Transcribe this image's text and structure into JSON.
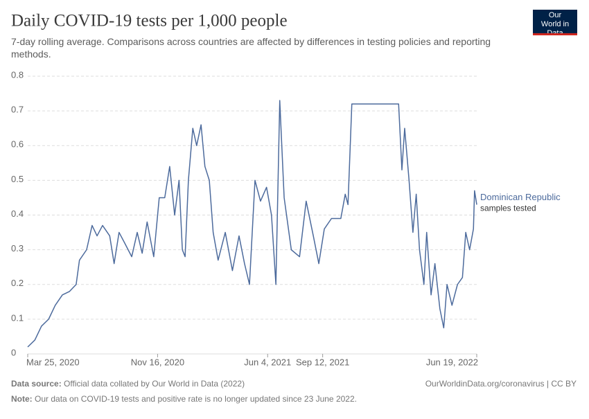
{
  "chart_data": {
    "type": "line",
    "title": "Daily COVID-19 tests per 1,000 people",
    "subtitle": "7-day rolling average. Comparisons across countries are affected by differences in testing policies and reporting methods.",
    "logo": "Our World in Data",
    "annotation": "samples tested",
    "source_label": "Data source:",
    "source": "Official data collated by Our World in Data (2022)",
    "url": "OurWorldinData.org/coronavirus | CC BY",
    "note_label": "Note:",
    "note": "Our data on COVID-19 tests and positive rate is no longer updated since 23 June 2022.",
    "x": [
      "2020-03-25",
      "2020-04-07",
      "2020-04-19",
      "2020-05-02",
      "2020-05-14",
      "2020-05-27",
      "2020-06-09",
      "2020-06-21",
      "2020-06-27",
      "2020-07-10",
      "2020-07-20",
      "2020-07-29",
      "2020-08-08",
      "2020-08-21",
      "2020-08-29",
      "2020-09-07",
      "2020-09-17",
      "2020-09-30",
      "2020-10-10",
      "2020-10-19",
      "2020-10-28",
      "2020-11-09",
      "2020-11-19",
      "2020-11-29",
      "2020-12-08",
      "2020-12-17",
      "2020-12-25",
      "2020-12-31",
      "2021-01-05",
      "2021-01-11",
      "2021-01-19",
      "2021-01-26",
      "2021-02-03",
      "2021-02-10",
      "2021-02-18",
      "2021-02-25",
      "2021-03-06",
      "2021-03-19",
      "2021-04-01",
      "2021-04-13",
      "2021-04-23",
      "2021-05-02",
      "2021-05-12",
      "2021-05-22",
      "2021-06-02",
      "2021-06-11",
      "2021-06-19",
      "2021-06-26",
      "2021-07-04",
      "2021-07-17",
      "2021-08-01",
      "2021-08-13",
      "2021-08-26",
      "2021-09-05",
      "2021-09-15",
      "2021-09-28",
      "2021-10-15",
      "2021-10-23",
      "2021-10-28",
      "2021-11-04",
      "2022-01-28",
      "2022-02-03",
      "2022-02-08",
      "2022-02-16",
      "2022-02-23",
      "2022-03-01",
      "2022-03-07",
      "2022-03-15",
      "2022-03-20",
      "2022-03-28",
      "2022-04-04",
      "2022-04-13",
      "2022-04-20",
      "2022-04-26",
      "2022-05-05",
      "2022-05-15",
      "2022-05-24",
      "2022-05-30",
      "2022-06-06",
      "2022-06-13",
      "2022-06-15",
      "2022-06-19"
    ],
    "series": [
      {
        "name": "Dominican Republic",
        "color": "#4c6a9c",
        "values": [
          0.02,
          0.04,
          0.08,
          0.1,
          0.14,
          0.17,
          0.18,
          0.2,
          0.27,
          0.3,
          0.37,
          0.34,
          0.37,
          0.34,
          0.26,
          0.35,
          0.32,
          0.28,
          0.35,
          0.29,
          0.38,
          0.28,
          0.45,
          0.45,
          0.54,
          0.4,
          0.5,
          0.3,
          0.28,
          0.5,
          0.65,
          0.6,
          0.66,
          0.54,
          0.5,
          0.35,
          0.27,
          0.35,
          0.24,
          0.34,
          0.26,
          0.2,
          0.5,
          0.44,
          0.48,
          0.4,
          0.2,
          0.73,
          0.45,
          0.3,
          0.28,
          0.44,
          0.34,
          0.26,
          0.36,
          0.39,
          0.39,
          0.46,
          0.43,
          0.72,
          0.72,
          0.53,
          0.65,
          0.5,
          0.35,
          0.46,
          0.3,
          0.2,
          0.35,
          0.17,
          0.26,
          0.13,
          0.075,
          0.2,
          0.14,
          0.2,
          0.22,
          0.35,
          0.3,
          0.36,
          0.47,
          0.43
        ]
      }
    ],
    "xlim": [
      "2020-03-25",
      "2022-06-19"
    ],
    "xticks": [
      {
        "value": "2020-03-25",
        "label": "Mar 25, 2020"
      },
      {
        "value": "2020-11-16",
        "label": "Nov 16, 2020"
      },
      {
        "value": "2021-06-04",
        "label": "Jun 4, 2021"
      },
      {
        "value": "2021-09-12",
        "label": "Sep 12, 2021"
      },
      {
        "value": "2022-06-19",
        "label": "Jun 19, 2022"
      }
    ],
    "ylim": [
      0,
      0.8
    ],
    "yticks": [
      0,
      0.1,
      0.2,
      0.3,
      0.4,
      0.5,
      0.6,
      0.7,
      0.8
    ],
    "grid": true
  }
}
